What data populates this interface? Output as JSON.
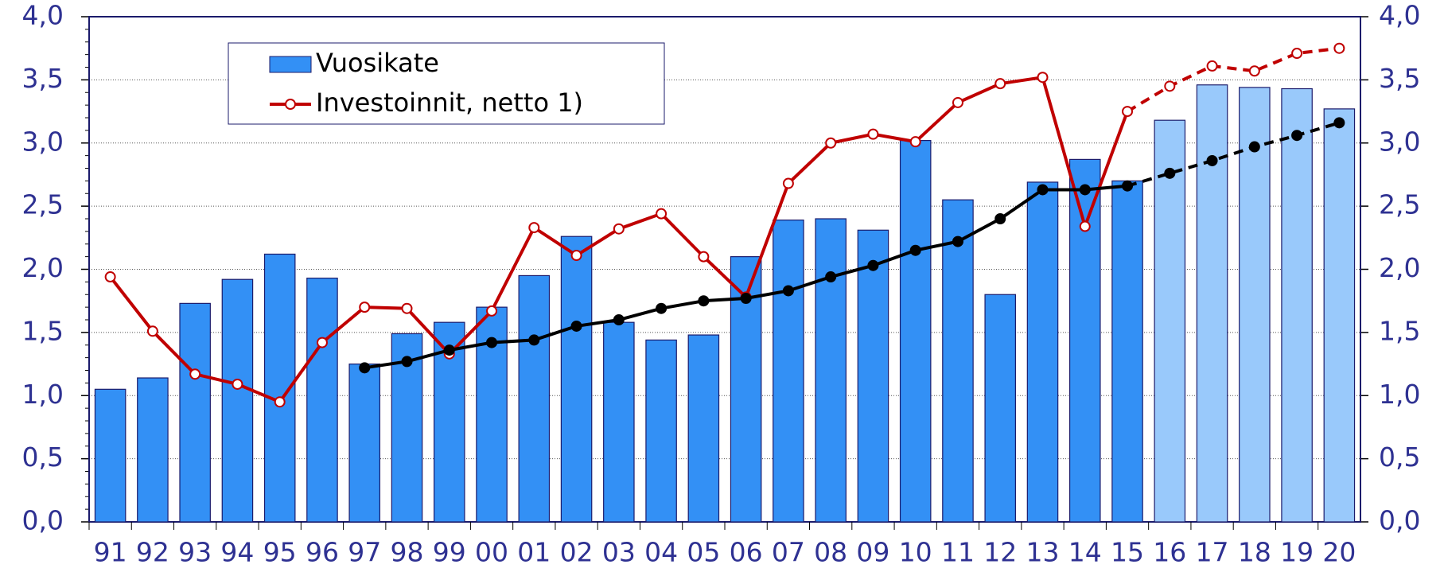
{
  "chart_data": {
    "type": "combo",
    "categories": [
      "91",
      "92",
      "93",
      "94",
      "95",
      "96",
      "97",
      "98",
      "99",
      "00",
      "01",
      "02",
      "03",
      "04",
      "05",
      "06",
      "07",
      "08",
      "09",
      "10",
      "11",
      "12",
      "13",
      "14",
      "15",
      "16",
      "17",
      "18",
      "19",
      "20"
    ],
    "series": [
      {
        "name": "Vuosikate",
        "type": "bar",
        "color": "#3390f5",
        "colors": [
          "#3390f5",
          "#3390f5",
          "#3390f5",
          "#3390f5",
          "#3390f5",
          "#3390f5",
          "#3390f5",
          "#3390f5",
          "#3390f5",
          "#3390f5",
          "#3390f5",
          "#3390f5",
          "#3390f5",
          "#3390f5",
          "#3390f5",
          "#3390f5",
          "#3390f5",
          "#3390f5",
          "#3390f5",
          "#3390f5",
          "#3390f5",
          "#3390f5",
          "#3390f5",
          "#3390f5",
          "#3390f5",
          "#99c9fb",
          "#99c9fb",
          "#99c9fb",
          "#99c9fb",
          "#99c9fb"
        ],
        "values": [
          1.05,
          1.14,
          1.73,
          1.92,
          2.12,
          1.93,
          1.25,
          1.49,
          1.58,
          1.7,
          1.95,
          2.26,
          1.58,
          1.44,
          1.48,
          2.1,
          2.39,
          2.4,
          2.31,
          3.02,
          2.55,
          1.8,
          2.69,
          2.87,
          2.7,
          3.18,
          3.46,
          3.44,
          3.43,
          3.27
        ]
      },
      {
        "name": "Investoinnit, netto 1)",
        "type": "line",
        "color": "#c00000",
        "marker_fill": "#ffffff",
        "dashed_from": 24,
        "values": [
          1.94,
          1.51,
          1.17,
          1.09,
          0.95,
          1.42,
          1.7,
          1.69,
          1.33,
          1.67,
          2.33,
          2.11,
          2.32,
          2.44,
          2.1,
          1.78,
          2.68,
          3.0,
          3.07,
          3.01,
          3.32,
          3.47,
          3.52,
          2.34,
          3.25,
          3.45,
          3.61,
          3.57,
          3.71,
          3.75
        ]
      },
      {
        "type": "line",
        "color": "#000000",
        "marker_fill": "#000000",
        "dashed_from": 24,
        "values": [
          null,
          null,
          null,
          null,
          null,
          null,
          1.22,
          1.27,
          1.36,
          1.42,
          1.44,
          1.55,
          1.6,
          1.69,
          1.75,
          1.77,
          1.83,
          1.94,
          2.03,
          2.15,
          2.22,
          2.4,
          2.63,
          2.63,
          2.66,
          2.76,
          2.86,
          2.97,
          3.06,
          3.16
        ]
      }
    ],
    "ylim": [
      0,
      4
    ],
    "yticks": [
      {
        "value": 0,
        "label": "0,0"
      },
      {
        "value": 0.5,
        "label": "0,5"
      },
      {
        "value": 1,
        "label": "1,0"
      },
      {
        "value": 1.5,
        "label": "1,5"
      },
      {
        "value": 2,
        "label": "2,0"
      },
      {
        "value": 2.5,
        "label": "2,5"
      },
      {
        "value": 3,
        "label": "3,0"
      },
      {
        "value": 3.5,
        "label": "3,5"
      },
      {
        "value": 4,
        "label": "4,0"
      }
    ],
    "y2lim": [
      0,
      4
    ],
    "y2ticks": [
      {
        "value": 0,
        "label": "0,0"
      },
      {
        "value": 0.5,
        "label": "0,5"
      },
      {
        "value": 1,
        "label": "1,0"
      },
      {
        "value": 1.5,
        "label": "1,5"
      },
      {
        "value": 2,
        "label": "2,0"
      },
      {
        "value": 2.5,
        "label": "2,5"
      },
      {
        "value": 3,
        "label": "3,0"
      },
      {
        "value": 3.5,
        "label": "3,5"
      },
      {
        "value": 4,
        "label": "4,0"
      }
    ],
    "grid": true,
    "legend": "top-left"
  }
}
